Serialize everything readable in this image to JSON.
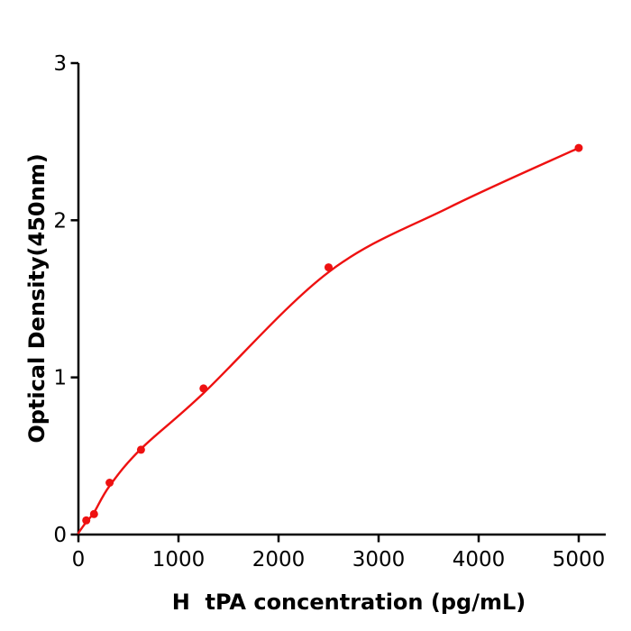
{
  "figure": {
    "background": "#ffffff"
  },
  "chart_data": {
    "type": "scatter",
    "title": "",
    "xlabel": "H  tPA concentration (pg/mL)",
    "ylabel": "Optical Density(450nm)",
    "xlim": [
      0,
      5270
    ],
    "ylim": [
      0,
      3
    ],
    "x_ticks": [
      0,
      1000,
      2000,
      3000,
      4000,
      5000
    ],
    "y_ticks": [
      0,
      1,
      2,
      3
    ],
    "grid": false,
    "legend_position": "none",
    "axis_color": "#000000",
    "tick_label_color": "#000000",
    "series": [
      {
        "name": "standard-points",
        "type": "scatter",
        "color": "#ee1111",
        "x": [
          78,
          156,
          312,
          625,
          1250,
          2500,
          5000
        ],
        "y": [
          0.09,
          0.13,
          0.33,
          0.54,
          0.93,
          1.7,
          2.46
        ]
      },
      {
        "name": "fit-curve",
        "type": "line",
        "color": "#ee1111",
        "x": [
          0,
          78,
          156,
          312,
          625,
          1250,
          2500,
          3700,
          5000
        ],
        "y": [
          0.01,
          0.08,
          0.14,
          0.31,
          0.545,
          0.9,
          1.67,
          2.08,
          2.46
        ]
      }
    ]
  }
}
